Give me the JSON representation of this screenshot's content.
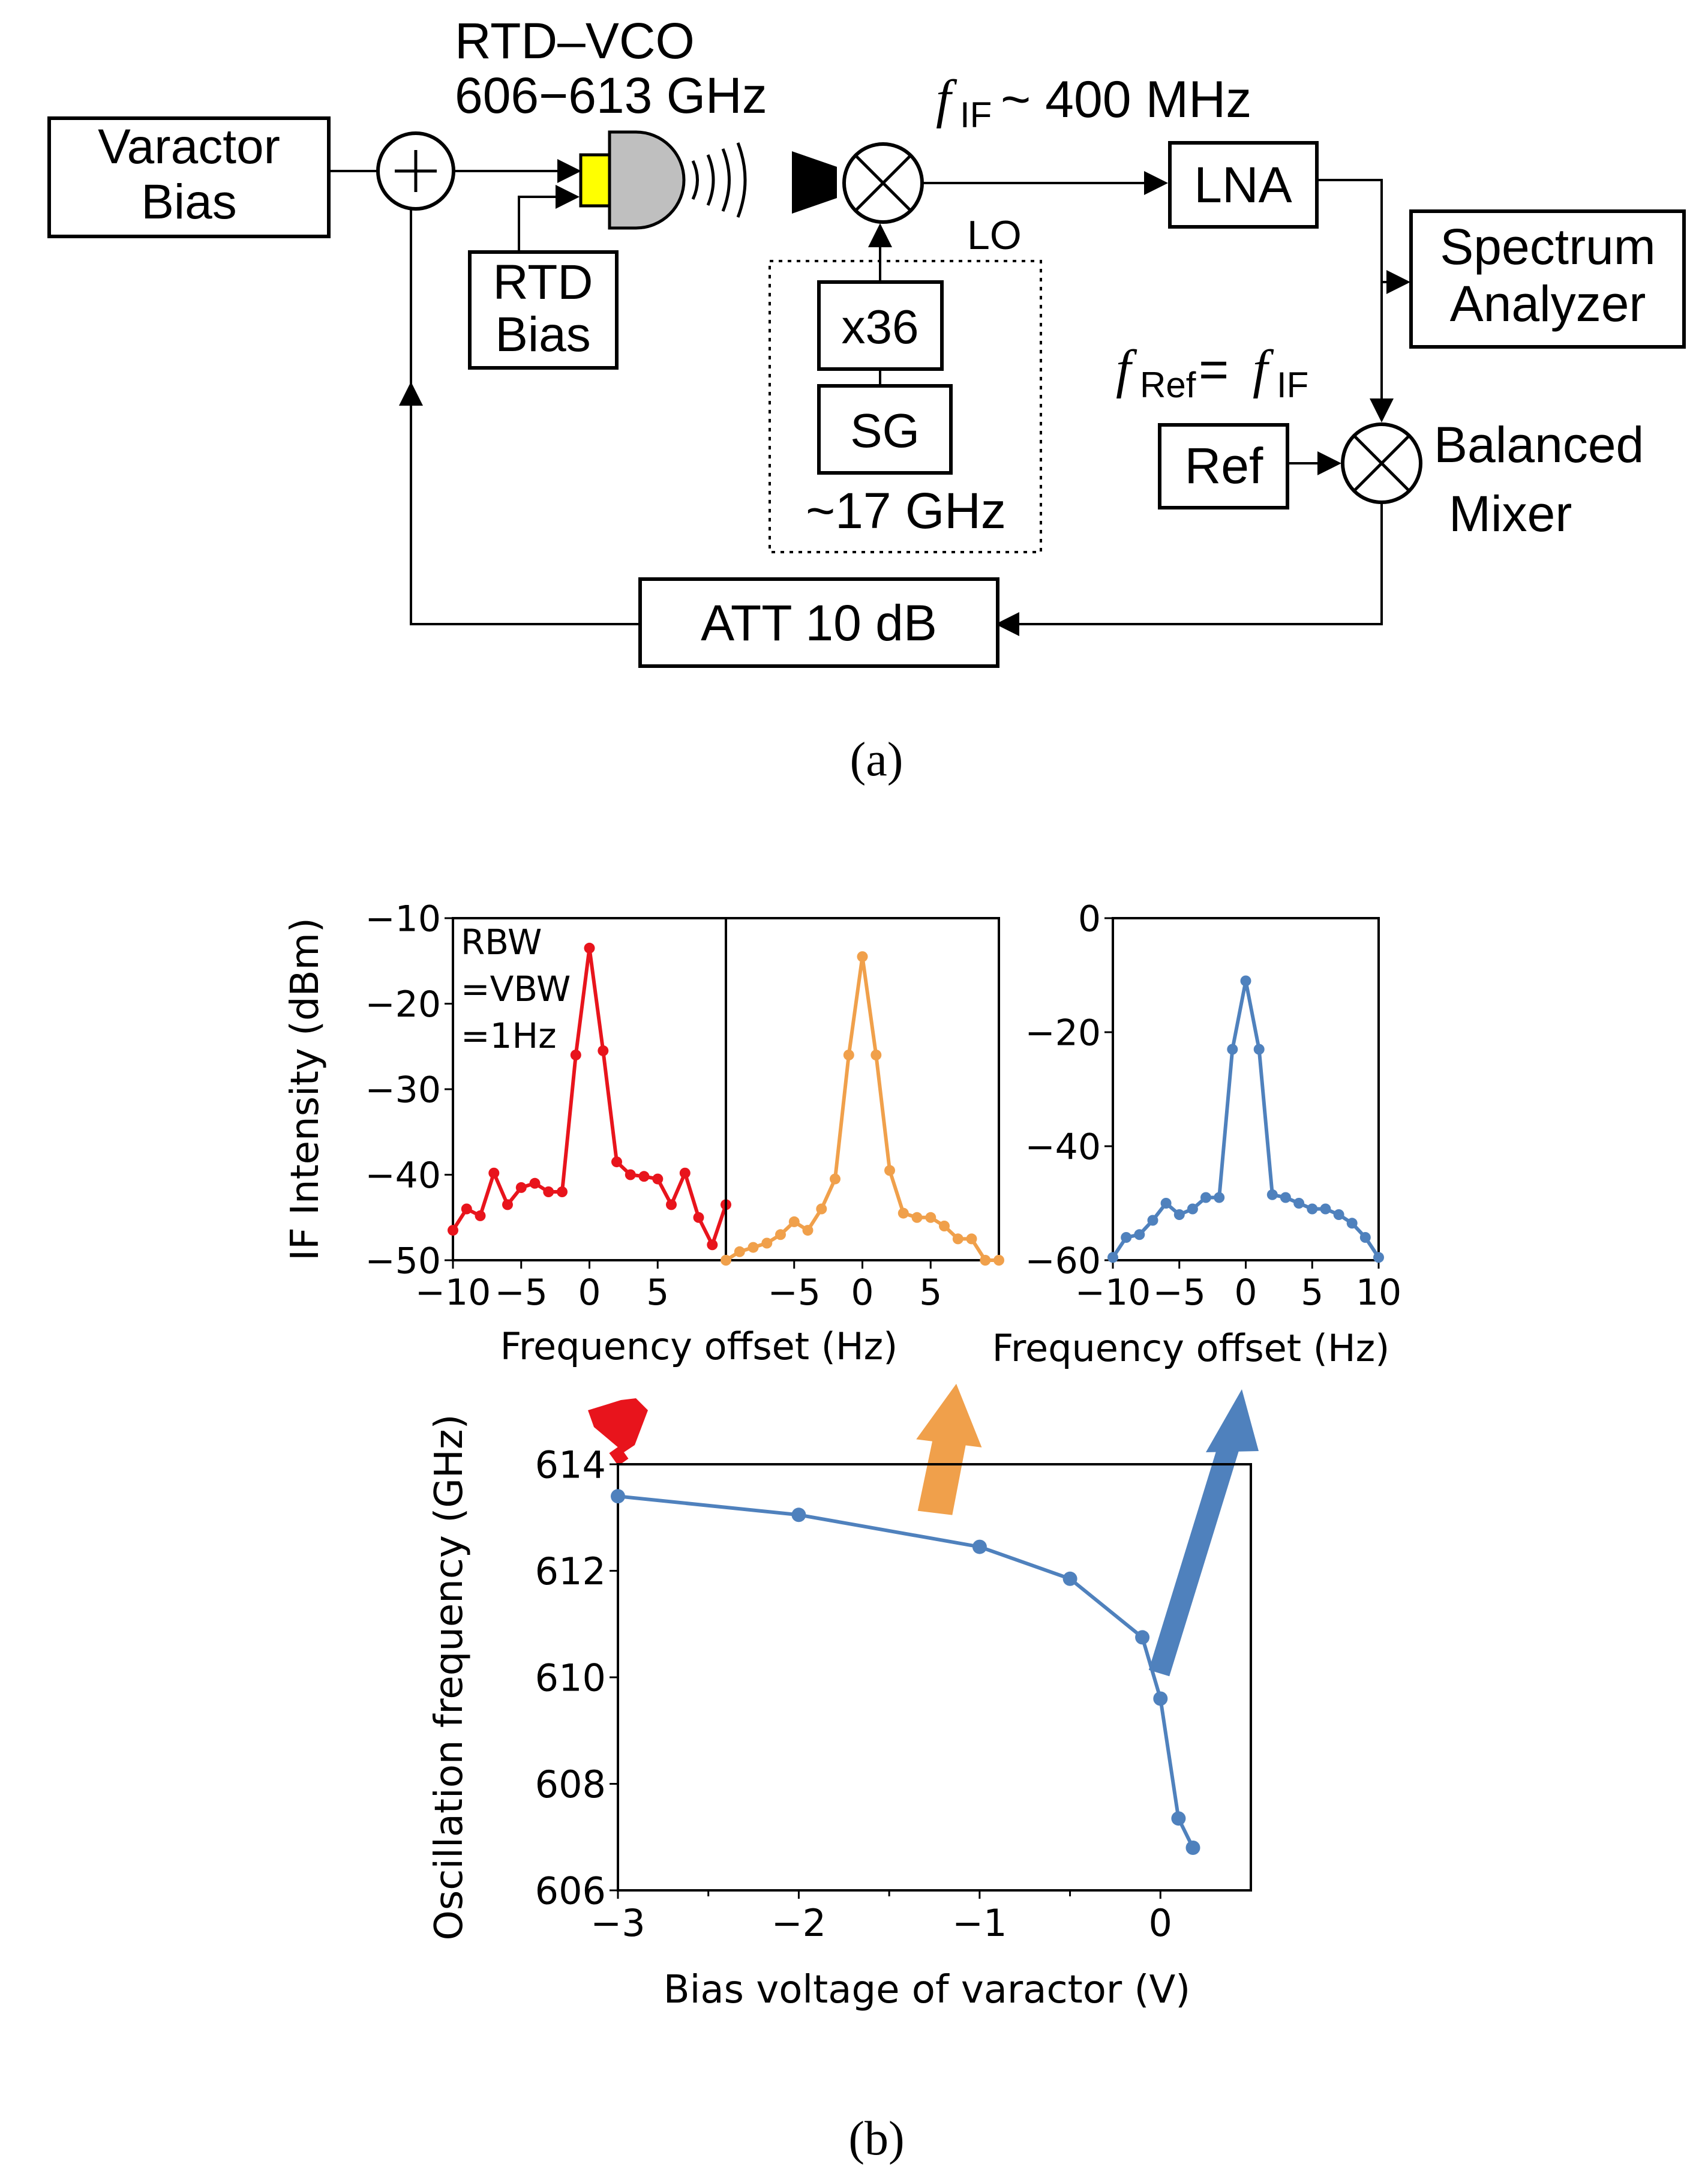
{
  "diagram": {
    "varactor_bias": [
      "Varactor",
      "Bias"
    ],
    "rtd_vco_title": "RTD–VCO",
    "rtd_vco_range": "606−613 GHz",
    "rtd_bias": [
      "RTD",
      "Bias"
    ],
    "lo_label": "LO",
    "mult_label": "x36",
    "sg_label": "SG",
    "sg_freq": "~17 GHz",
    "fif_symbol": "f",
    "fif_sub": "IF",
    "fif_value": " ~ 400 MHz",
    "lna_label": "LNA",
    "spectrum_analyzer": [
      "Spectrum",
      "Analyzer"
    ],
    "fref_symbol": "f",
    "fref_sub": "Ref",
    "fref_equals": " = ",
    "fref_rhs_symbol": "f",
    "fref_rhs_sub": "IF",
    "ref_label": "Ref",
    "balanced_mixer": [
      "Balanced",
      "Mixer"
    ],
    "att_label": "ATT 10 dB",
    "caption_a": "(a)"
  },
  "colors": {
    "red": "#e8141c",
    "orange": "#f0a04b",
    "blue": "#4f81bd",
    "varactor_yellow": "#ffff00",
    "antenna_gray": "#bfbfbf"
  },
  "caption_b": "(b)",
  "chart_data": [
    {
      "type": "line",
      "name": "spectrum-red",
      "ylabel": "IF Intensity (dBm)",
      "xlabel": "Frequency offset (Hz)",
      "ylim": [
        -50,
        -10
      ],
      "xlim": [
        -10,
        10
      ],
      "yticks": [
        "−10",
        "−20",
        "−30",
        "−40",
        "−50"
      ],
      "xticks": [
        "−10",
        "−5",
        "0",
        "5"
      ],
      "annotation": [
        "RBW",
        "=VBW",
        "=1Hz"
      ],
      "x": [
        -10,
        -9,
        -8,
        -7,
        -6,
        -5,
        -4,
        -3,
        -2,
        -1,
        0,
        1,
        2,
        3,
        4,
        5,
        6,
        7,
        8,
        9,
        10
      ],
      "y": [
        -46.5,
        -44,
        -44.8,
        -39.8,
        -43.5,
        -41.5,
        -41,
        -42,
        -42,
        -26,
        -13.5,
        -25.5,
        -38.5,
        -40,
        -40.2,
        -40.5,
        -43.5,
        -39.8,
        -45,
        -48.2,
        -43.5
      ]
    },
    {
      "type": "line",
      "name": "spectrum-orange",
      "ylim": [
        -50,
        -10
      ],
      "xlim": [
        -10,
        10
      ],
      "xticks": [
        "−5",
        "0",
        "5"
      ],
      "x": [
        -10,
        -9,
        -8,
        -7,
        -6,
        -5,
        -4,
        -3,
        -2,
        -1,
        0,
        1,
        2,
        3,
        4,
        5,
        6,
        7,
        8,
        9,
        10
      ],
      "y": [
        -50,
        -49,
        -48.5,
        -48,
        -47,
        -45.5,
        -46.5,
        -44,
        -40.5,
        -26,
        -14.5,
        -26,
        -39.5,
        -44.5,
        -45,
        -45,
        -46,
        -47.5,
        -47.5,
        -50,
        -50
      ]
    },
    {
      "type": "line",
      "name": "spectrum-blue",
      "xlabel": "Frequency offset (Hz)",
      "ylim": [
        -60,
        0
      ],
      "xlim": [
        -10,
        10
      ],
      "yticks": [
        "0",
        "−20",
        "−40",
        "−60"
      ],
      "xticks": [
        "−10",
        "−5",
        "0",
        "5",
        "10"
      ],
      "x": [
        -10,
        -9,
        -8,
        -7,
        -6,
        -5,
        -4,
        -3,
        -2,
        -1,
        0,
        1,
        2,
        3,
        4,
        5,
        6,
        7,
        8,
        9,
        10
      ],
      "y": [
        -59.5,
        -56,
        -55.5,
        -53,
        -50,
        -52,
        -51,
        -49,
        -49,
        -23,
        -11,
        -23,
        -48.5,
        -49,
        -50,
        -51,
        -51,
        -52,
        -53.5,
        -56,
        -59.5
      ]
    },
    {
      "type": "line",
      "name": "oscillation-frequency",
      "xlabel": "Bias voltage of varactor  (V)",
      "ylabel": "Oscillation frequency (GHz)",
      "xlim": [
        -3,
        0.5
      ],
      "ylim": [
        606,
        614
      ],
      "xticks": [
        "−3",
        "−2",
        "−1",
        "0"
      ],
      "yticks": [
        "614",
        "612",
        "610",
        "608",
        "606"
      ],
      "x": [
        -3,
        -2,
        -1,
        -0.5,
        -0.1,
        0,
        0.1,
        0.18
      ],
      "y": [
        613.4,
        613.05,
        612.45,
        611.85,
        610.75,
        609.6,
        607.35,
        606.8
      ]
    }
  ]
}
